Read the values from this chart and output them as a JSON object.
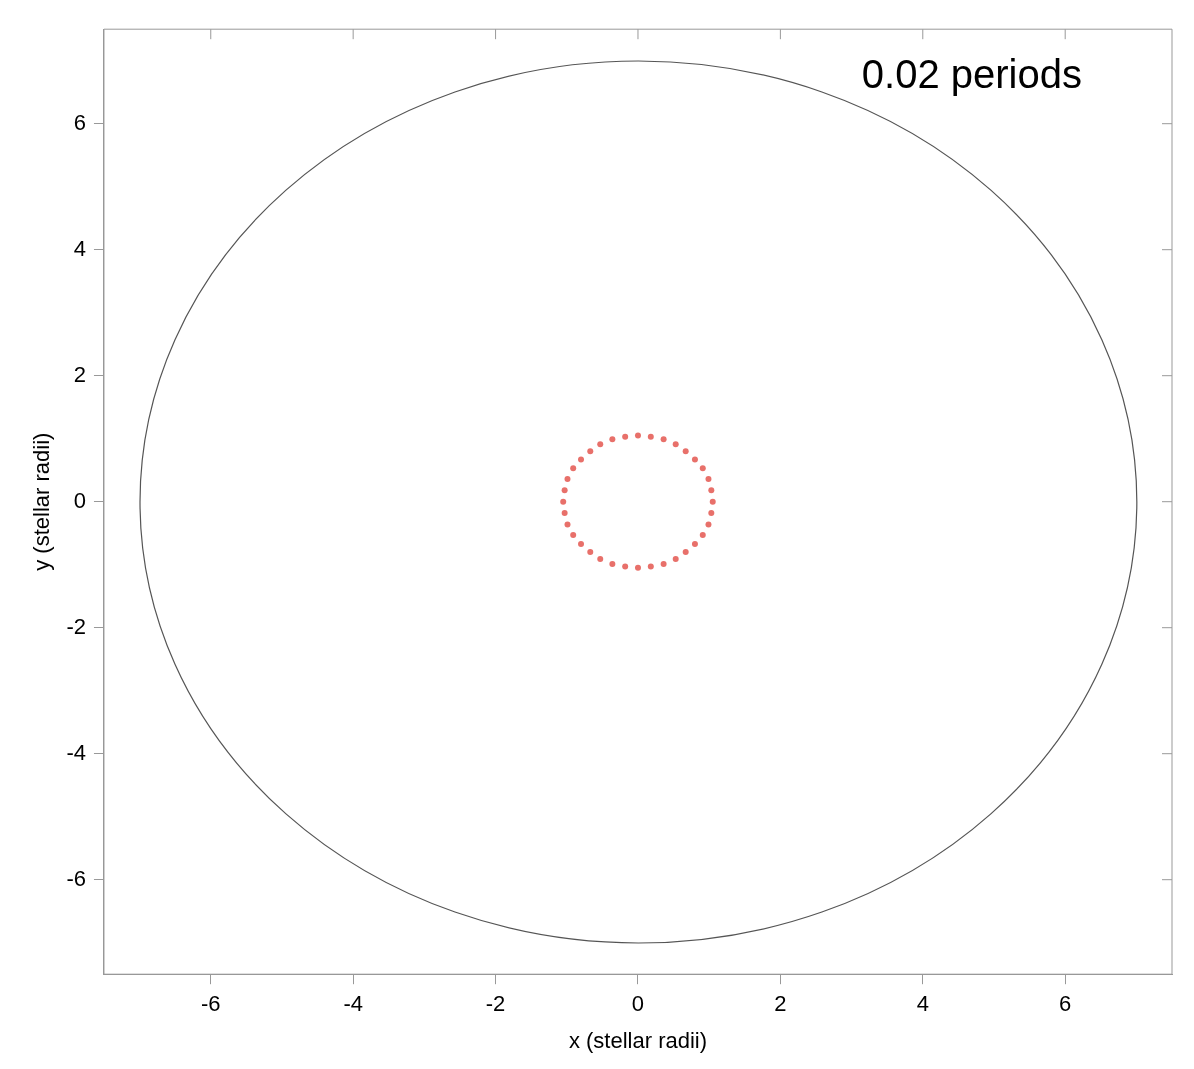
{
  "chart_data": {
    "type": "scatter",
    "xlabel": "x (stellar radii)",
    "ylabel": "y (stellar radii)",
    "annotations": [
      "0.02 periods"
    ],
    "xlim": [
      -7.5,
      7.5
    ],
    "ylim": [
      -7.5,
      7.5
    ],
    "xticks": [
      -6,
      -4,
      -2,
      0,
      2,
      4,
      6
    ],
    "yticks": [
      -6,
      -4,
      -2,
      0,
      2,
      4,
      6
    ],
    "grid": false,
    "legend": false,
    "series": [
      {
        "type": "scatter",
        "color": "#e8706a",
        "marker": "circle",
        "x": [
          1.05,
          1.03,
          0.99,
          0.91,
          0.8,
          0.67,
          0.53,
          0.36,
          0.18,
          0,
          -0.18,
          -0.36,
          -0.53,
          -0.67,
          -0.8,
          -0.91,
          -0.99,
          -1.03,
          -1.05,
          -1.03,
          -0.99,
          -0.91,
          -0.8,
          -0.67,
          -0.53,
          -0.36,
          -0.18,
          0,
          0.18,
          0.36,
          0.53,
          0.67,
          0.8,
          0.91,
          0.99,
          1.03
        ],
        "values": [
          0,
          0.18,
          0.36,
          0.53,
          0.67,
          0.8,
          0.91,
          0.99,
          1.03,
          1.05,
          1.03,
          0.99,
          0.91,
          0.8,
          0.67,
          0.53,
          0.36,
          0.18,
          0,
          -0.18,
          -0.36,
          -0.53,
          -0.67,
          -0.8,
          -0.91,
          -0.99,
          -1.03,
          -1.05,
          -1.03,
          -0.99,
          -0.91,
          -0.8,
          -0.67,
          -0.53,
          -0.36,
          -0.18
        ]
      }
    ]
  }
}
